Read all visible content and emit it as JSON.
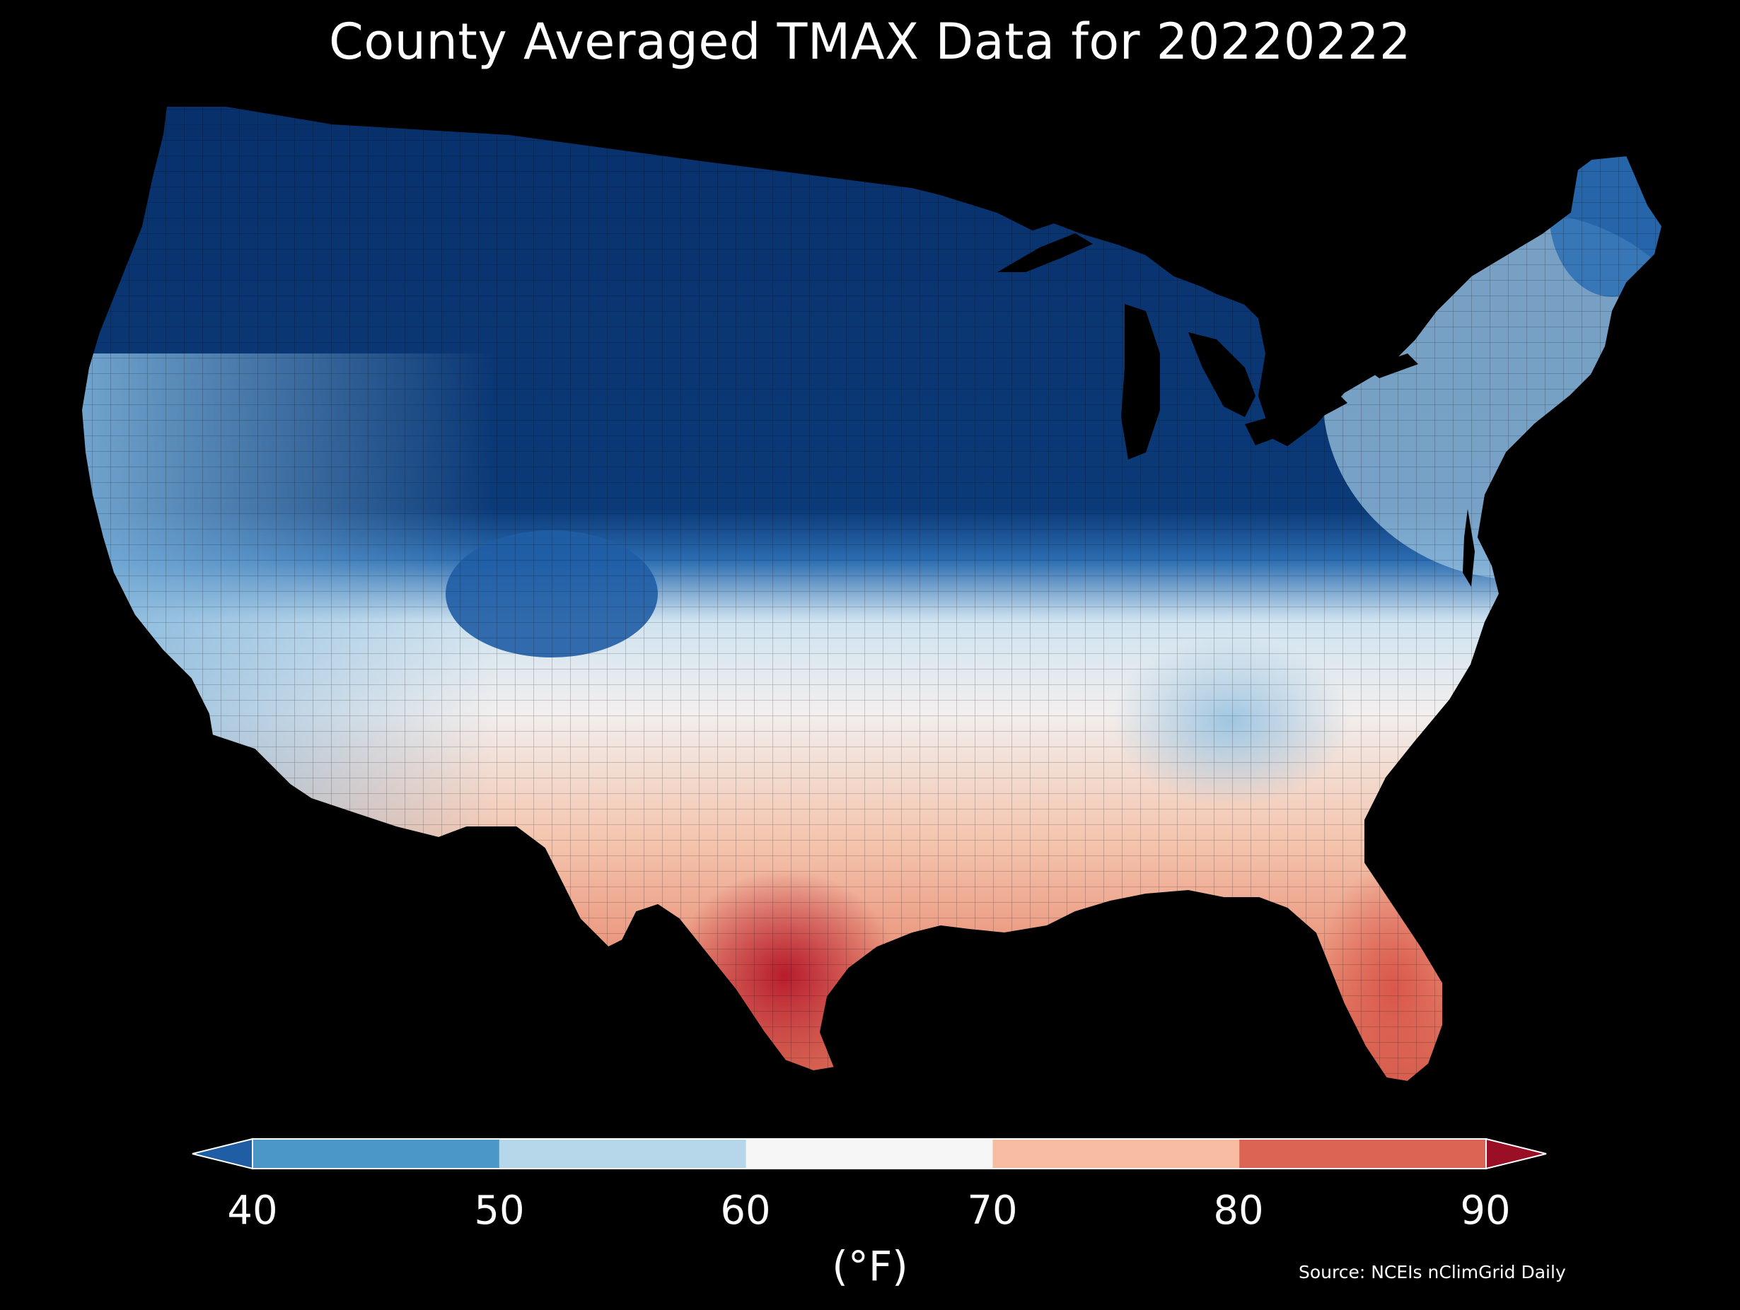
{
  "title": "County Averaged TMAX Data for 20220222",
  "colorbar": {
    "ticks": [
      "40",
      "50",
      "60",
      "70",
      "80",
      "90"
    ],
    "unit_label": "(°F)",
    "bins": [
      {
        "range": "<40",
        "color": "#1f5da5"
      },
      {
        "range": "40-50",
        "color": "#4a97c8"
      },
      {
        "range": "50-60",
        "color": "#b6d6e9"
      },
      {
        "range": "60-70",
        "color": "#f6f6f6"
      },
      {
        "range": "70-80",
        "color": "#f7bca1"
      },
      {
        "range": "80-90",
        "color": "#db6454"
      },
      {
        "range": ">90",
        "color": "#9a0e26"
      }
    ]
  },
  "source": "Source: NCEIs nClimGrid Daily",
  "palette": {
    "deep_cold": "#08306b",
    "cold": "#1f5da5",
    "cool": "#6aa9d4",
    "mild": "#cfe3f0",
    "neutral": "#f2efee",
    "warm": "#f6bda4",
    "hot": "#e0735e",
    "hottest": "#c1272d",
    "background": "#000000"
  }
}
